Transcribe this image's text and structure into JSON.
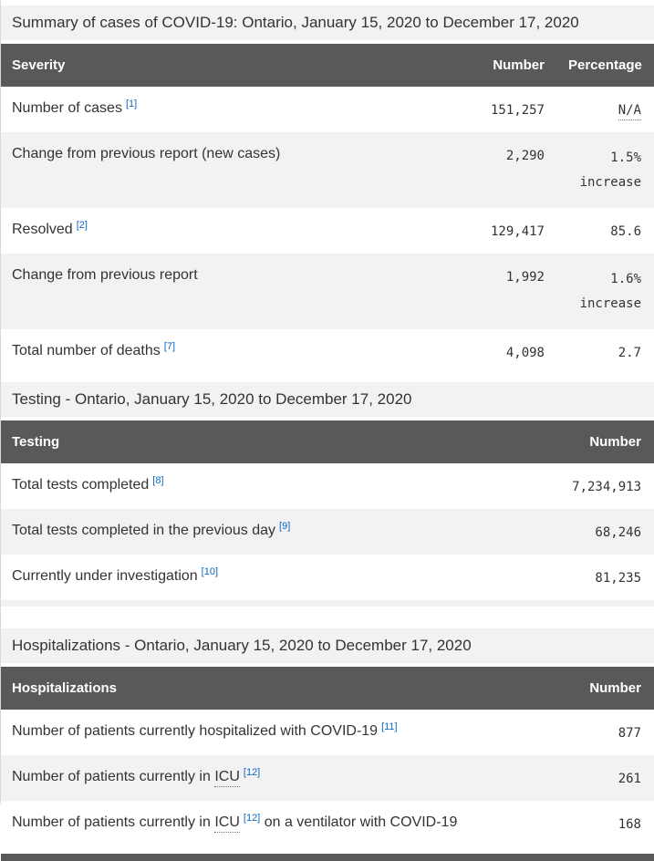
{
  "colors": {
    "table_header_bg": "#595959",
    "stripe_bg": "#f2f2f2",
    "caption_bg": "#f2f2f2",
    "link_blue": "#0d68c1",
    "text": "#333333"
  },
  "tables": [
    {
      "caption": "Summary of cases of COVID-19: Ontario, January 15, 2020 to December 17, 2020",
      "columns": [
        "Severity",
        "Number",
        "Percentage"
      ],
      "rows": [
        {
          "label": "Number of cases",
          "footnote": "[1]",
          "number": "151,257",
          "percentage": "N/A"
        },
        {
          "label": "Change from previous report (new cases)",
          "number": "2,290",
          "percentage_value": "1.5%",
          "percentage_note": "increase"
        },
        {
          "label": "Resolved",
          "footnote": "[2]",
          "number": "129,417",
          "percentage": "85.6"
        },
        {
          "label": "Change from previous report",
          "number": "1,992",
          "percentage_value": "1.6%",
          "percentage_note": "increase"
        },
        {
          "label": "Total number of deaths",
          "footnote": "[7]",
          "number": "4,098",
          "percentage": "2.7"
        }
      ]
    },
    {
      "caption": "Testing - Ontario, January 15, 2020 to December 17, 2020",
      "columns": [
        "Testing",
        "Number"
      ],
      "rows": [
        {
          "label": "Total tests completed",
          "footnote": "[8]",
          "number": "7,234,913"
        },
        {
          "label": "Total tests completed in the previous day",
          "footnote": "[9]",
          "number": "68,246"
        },
        {
          "label": "Currently under investigation",
          "footnote": "[10]",
          "number": "81,235"
        }
      ]
    },
    {
      "caption": "Hospitalizations - Ontario, January 15, 2020 to December 17, 2020",
      "columns": [
        "Hospitalizations",
        "Number"
      ],
      "rows": [
        {
          "label": "Number of patients currently hospitalized with COVID-19",
          "footnote": "[11]",
          "number": "877"
        },
        {
          "label_prefix": "Number of patients currently in",
          "abbr": "ICU",
          "footnote": "[12]",
          "number": "261"
        },
        {
          "label_prefix": "Number of patients currently in",
          "abbr": "ICU",
          "footnote": "[12]",
          "label_suffix": "on a ventilator with COVID-19",
          "number": "168"
        }
      ]
    }
  ]
}
